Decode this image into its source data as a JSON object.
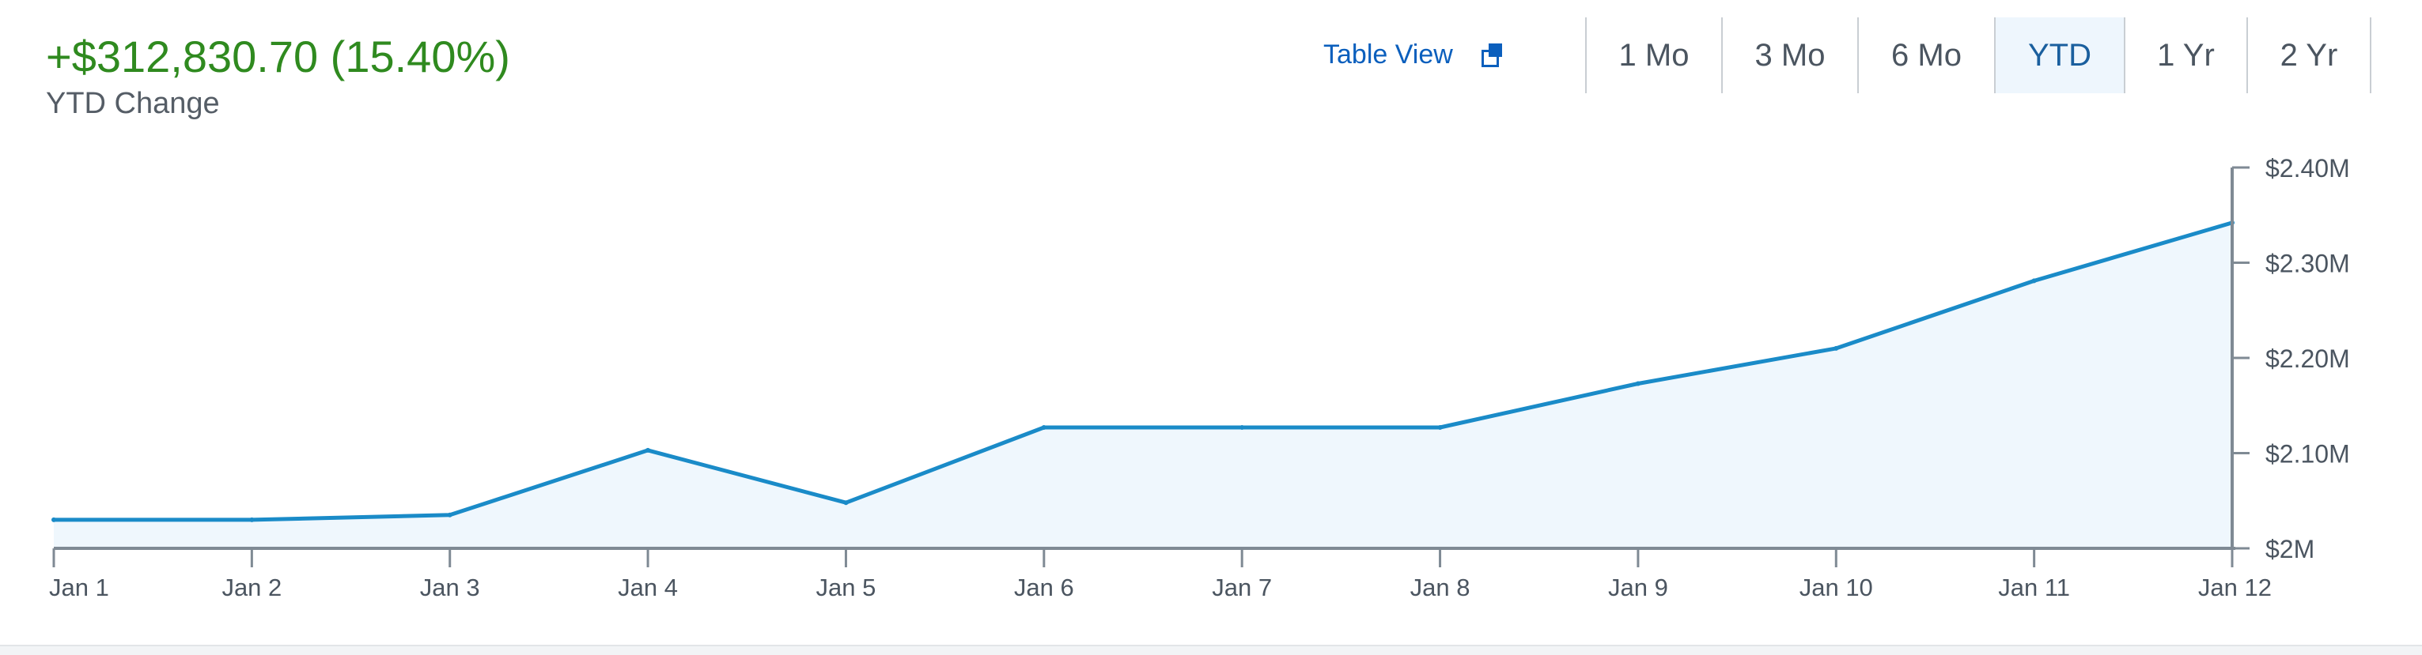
{
  "summary": {
    "change_value": "+$312,830.70 (15.40%)",
    "change_label": "YTD Change"
  },
  "table_view": {
    "label": "Table View",
    "icon": "popout-icon"
  },
  "range_tabs": [
    {
      "label": "1 Mo",
      "active": false
    },
    {
      "label": "3 Mo",
      "active": false
    },
    {
      "label": "6 Mo",
      "active": false
    },
    {
      "label": "YTD",
      "active": true
    },
    {
      "label": "1 Yr",
      "active": false
    },
    {
      "label": "2 Yr",
      "active": false
    }
  ],
  "chart_data": {
    "type": "area",
    "x": [
      "Jan 1",
      "Jan 2",
      "Jan 3",
      "Jan 4",
      "Jan 5",
      "Jan 6",
      "Jan 7",
      "Jan 8",
      "Jan 9",
      "Jan 10",
      "Jan 11",
      "Jan 12"
    ],
    "values": [
      2030000,
      2030000,
      2035000,
      2103000,
      2048000,
      2127000,
      2127000,
      2127000,
      2173000,
      2210000,
      2281000,
      2342000
    ],
    "yticks": [
      2000000,
      2100000,
      2200000,
      2300000,
      2400000
    ],
    "ytick_labels": [
      "$2M",
      "$2.10M",
      "$2.20M",
      "$2.30M",
      "$2.40M"
    ],
    "ylim": [
      2000000,
      2400000
    ],
    "y_axis_position": "right",
    "grid": false,
    "legend": false,
    "title": "",
    "xlabel": "",
    "ylabel": "",
    "colors": {
      "line": "#1a8bc8",
      "fill": "#eff7fd",
      "axis": "#7f8a94",
      "tick_label": "#4b5560",
      "positive_change": "#2f8a1f",
      "link": "#0b5fbd",
      "active_tab_bg": "#eef6fd"
    }
  }
}
